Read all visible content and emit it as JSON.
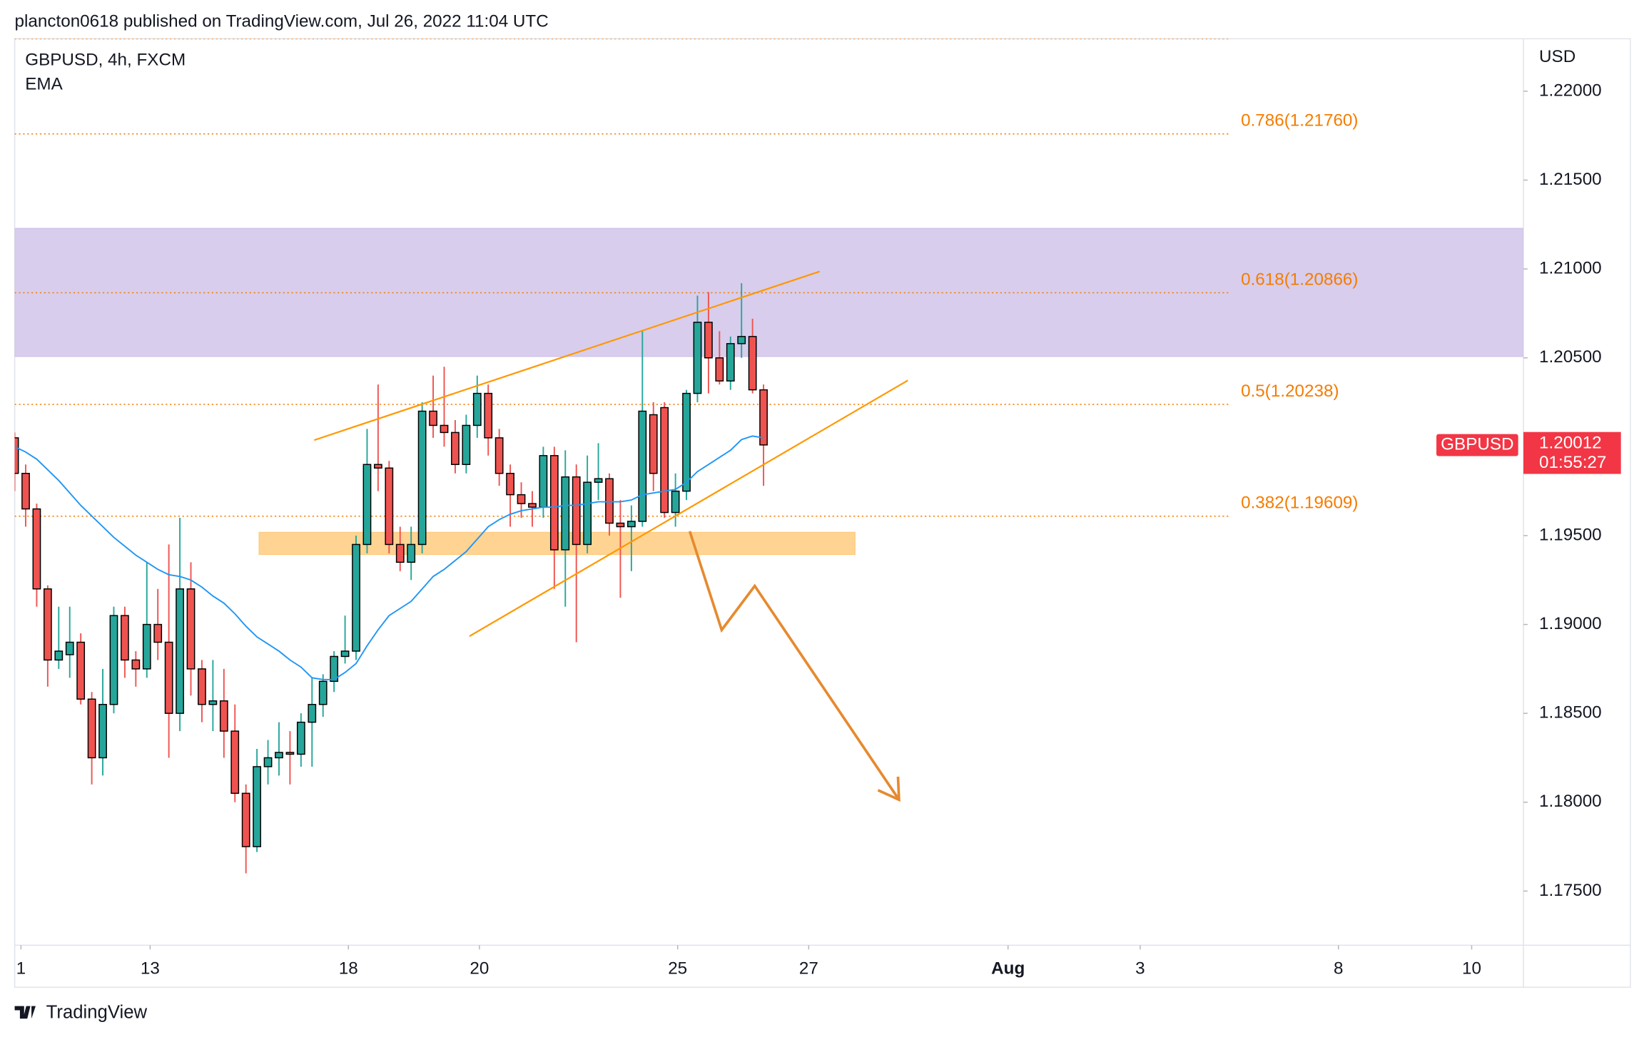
{
  "header": {
    "title": "plancton0618 published on TradingView.com, Jul 26, 2022 11:04 UTC"
  },
  "chart_data": {
    "type": "candlestick",
    "symbol_label": "GBPUSD, 4h, FXCM",
    "y_unit": "USD",
    "series": [
      {
        "name": "GBPUSD",
        "up_color": "#26a69a",
        "down_color": "#ef5350",
        "open": [
          1.2005,
          1.1985,
          1.1965,
          1.192,
          1.188,
          1.1883,
          1.189,
          1.1858,
          1.1825,
          1.1855,
          1.1905,
          1.188,
          1.1875,
          1.19,
          1.189,
          1.185,
          1.192,
          1.1875,
          1.1855,
          1.1857,
          1.184,
          1.1805,
          1.1775,
          1.182,
          1.1825,
          1.1828,
          1.1827,
          1.1845,
          1.1855,
          1.1868,
          1.1882,
          1.1885,
          1.1945,
          1.199,
          1.1988,
          1.1945,
          1.1935,
          1.1945,
          1.202,
          1.2012,
          1.2008,
          1.199,
          1.2012,
          1.203,
          1.2005,
          1.1985,
          1.1973,
          1.1968,
          1.1966,
          1.1995,
          1.1942,
          1.1983,
          1.1945,
          1.198,
          1.1982,
          1.1957,
          1.1955,
          1.1958,
          1.2018,
          1.2022,
          1.1963,
          1.1975,
          1.203,
          1.207,
          1.205,
          1.2037,
          1.2058,
          1.2062,
          1.2032
        ],
        "high": [
          1.2008,
          1.199,
          1.1968,
          1.1922,
          1.191,
          1.191,
          1.1895,
          1.1862,
          1.1875,
          1.191,
          1.191,
          1.1885,
          1.1935,
          1.192,
          1.1945,
          1.196,
          1.1935,
          1.188,
          1.188,
          1.1875,
          1.1855,
          1.181,
          1.183,
          1.1835,
          1.1845,
          1.184,
          1.185,
          1.187,
          1.1872,
          1.1885,
          1.1905,
          1.195,
          1.201,
          1.2035,
          1.1992,
          1.1955,
          1.1955,
          1.2025,
          1.204,
          1.2045,
          1.2015,
          1.2018,
          1.204,
          1.2035,
          1.201,
          1.199,
          1.198,
          1.1975,
          1.2,
          1.2,
          1.1998,
          1.199,
          1.1995,
          1.2002,
          1.1985,
          1.197,
          1.1967,
          1.2065,
          1.2025,
          1.2025,
          1.1985,
          1.2032,
          1.2085,
          1.2087,
          1.2065,
          1.2062,
          1.2092,
          1.2072,
          1.2035
        ],
        "low": [
          1.1975,
          1.1955,
          1.191,
          1.1865,
          1.1875,
          1.187,
          1.1855,
          1.181,
          1.1815,
          1.185,
          1.187,
          1.1865,
          1.187,
          1.188,
          1.1825,
          1.184,
          1.186,
          1.1845,
          1.184,
          1.1825,
          1.18,
          1.176,
          1.1772,
          1.181,
          1.1815,
          1.181,
          1.182,
          1.182,
          1.1848,
          1.1862,
          1.1878,
          1.188,
          1.194,
          1.1975,
          1.194,
          1.193,
          1.1925,
          1.194,
          1.2005,
          1.2,
          1.1985,
          1.1985,
          1.2005,
          1.1995,
          1.1978,
          1.1955,
          1.196,
          1.1955,
          1.196,
          1.192,
          1.191,
          1.189,
          1.194,
          1.197,
          1.195,
          1.1915,
          1.193,
          1.1955,
          1.1975,
          1.196,
          1.1955,
          1.197,
          1.2025,
          1.203,
          1.2035,
          1.2032,
          1.205,
          1.203,
          1.1978
        ],
        "close": [
          1.1985,
          1.1965,
          1.192,
          1.188,
          1.1885,
          1.189,
          1.1858,
          1.1825,
          1.1855,
          1.1905,
          1.188,
          1.1875,
          1.19,
          1.189,
          1.185,
          1.192,
          1.1875,
          1.1855,
          1.1857,
          1.184,
          1.1805,
          1.1775,
          1.182,
          1.1825,
          1.1828,
          1.1827,
          1.1845,
          1.1855,
          1.1868,
          1.1882,
          1.1885,
          1.1945,
          1.199,
          1.1988,
          1.1945,
          1.1935,
          1.1945,
          1.202,
          1.2012,
          1.2008,
          1.199,
          1.2012,
          1.203,
          1.2005,
          1.1985,
          1.1973,
          1.1968,
          1.1966,
          1.1995,
          1.1942,
          1.1983,
          1.1945,
          1.198,
          1.1982,
          1.1957,
          1.1955,
          1.1958,
          1.202,
          1.1985,
          1.1963,
          1.1975,
          1.203,
          1.207,
          1.205,
          1.2037,
          1.2058,
          1.2062,
          1.2032,
          1.2001
        ]
      },
      {
        "name": "EMA",
        "color": "#2196f3",
        "values": [
          1.2,
          1.1997,
          1.1993,
          1.1987,
          1.1981,
          1.1974,
          1.1967,
          1.1961,
          1.1955,
          1.1949,
          1.1944,
          1.1939,
          1.1935,
          1.1931,
          1.1928,
          1.1927,
          1.1925,
          1.1921,
          1.1916,
          1.1912,
          1.1906,
          1.1899,
          1.1893,
          1.1889,
          1.1885,
          1.188,
          1.1876,
          1.187,
          1.1869,
          1.1869,
          1.1873,
          1.1878,
          1.1888,
          1.1897,
          1.1905,
          1.1909,
          1.1913,
          1.192,
          1.1927,
          1.1931,
          1.1936,
          1.1941,
          1.1948,
          1.1955,
          1.1959,
          1.1962,
          1.1964,
          1.1965,
          1.1966,
          1.1966,
          1.1967,
          1.1967,
          1.1968,
          1.1969,
          1.1969,
          1.1969,
          1.197,
          1.1973,
          1.1974,
          1.1975,
          1.1976,
          1.198,
          1.1986,
          1.199,
          1.1994,
          1.1998,
          1.2004,
          1.2006,
          1.2005
        ]
      }
    ],
    "xlim": [
      0,
      137
    ],
    "xticks": [
      {
        "value": 0.57,
        "label": "1"
      },
      {
        "value": 12.3,
        "label": "13"
      },
      {
        "value": 30.3,
        "label": "18"
      },
      {
        "value": 42.2,
        "label": "20"
      },
      {
        "value": 60.2,
        "label": "25"
      },
      {
        "value": 72.1,
        "label": "27"
      },
      {
        "value": 90.2,
        "label": "Aug"
      },
      {
        "value": 102.2,
        "label": "3"
      },
      {
        "value": 120.2,
        "label": "8"
      },
      {
        "value": 132.3,
        "label": "10"
      }
    ],
    "ylim": [
      1.17195,
      1.22295
    ],
    "yticks": [
      {
        "value": 1.22,
        "label": "1.22000"
      },
      {
        "value": 1.215,
        "label": "1.21500"
      },
      {
        "value": 1.21,
        "label": "1.21000"
      },
      {
        "value": 1.205,
        "label": "1.20500"
      },
      {
        "value": 1.2,
        "label": "1.20000"
      },
      {
        "value": 1.195,
        "label": "1.19500"
      },
      {
        "value": 1.19,
        "label": "1.19000"
      },
      {
        "value": 1.185,
        "label": "1.18500"
      },
      {
        "value": 1.18,
        "label": "1.18000"
      },
      {
        "value": 1.175,
        "label": "1.17500"
      }
    ],
    "grid": false,
    "last_price": {
      "value": 1.20012,
      "name": "GBPUSD",
      "countdown": "01:55:27",
      "color": "#f23645"
    },
    "fib_color": "#f57c00",
    "fib_x": [
      0,
      110.3
    ],
    "fib_levels": [
      {
        "value": 1.22295
      },
      {
        "value": 1.2176,
        "label": "0.786(1.21760)"
      },
      {
        "value": 1.20866,
        "label": "0.618(1.20866)"
      },
      {
        "value": 1.20238,
        "label": "0.5(1.20238)"
      },
      {
        "value": 1.19609,
        "label": "0.382(1.19609)"
      }
    ],
    "zones": [
      {
        "x": [
          0,
          137
        ],
        "y": [
          1.21228,
          1.20508
        ],
        "color": "#d1c4e9"
      },
      {
        "x": [
          22.2,
          76.3
        ],
        "y": [
          1.19518,
          1.19394
        ],
        "color": "#ffcc80"
      }
    ],
    "trendlines": [
      {
        "x": [
          27.2,
          73.1
        ],
        "y": [
          1.20037,
          1.20986
        ],
        "color": "#ff9800"
      },
      {
        "x": [
          41.3,
          81.1
        ],
        "y": [
          1.18934,
          1.20373
        ],
        "color": "#ff9800"
      }
    ],
    "arrow": {
      "x": [
        61.3,
        64.2,
        67.2,
        80.3
      ],
      "y": [
        1.19524,
        1.18969,
        1.19217,
        1.18014
      ],
      "color": "#e68a2e"
    }
  },
  "footer": {
    "brand": "TradingView"
  }
}
